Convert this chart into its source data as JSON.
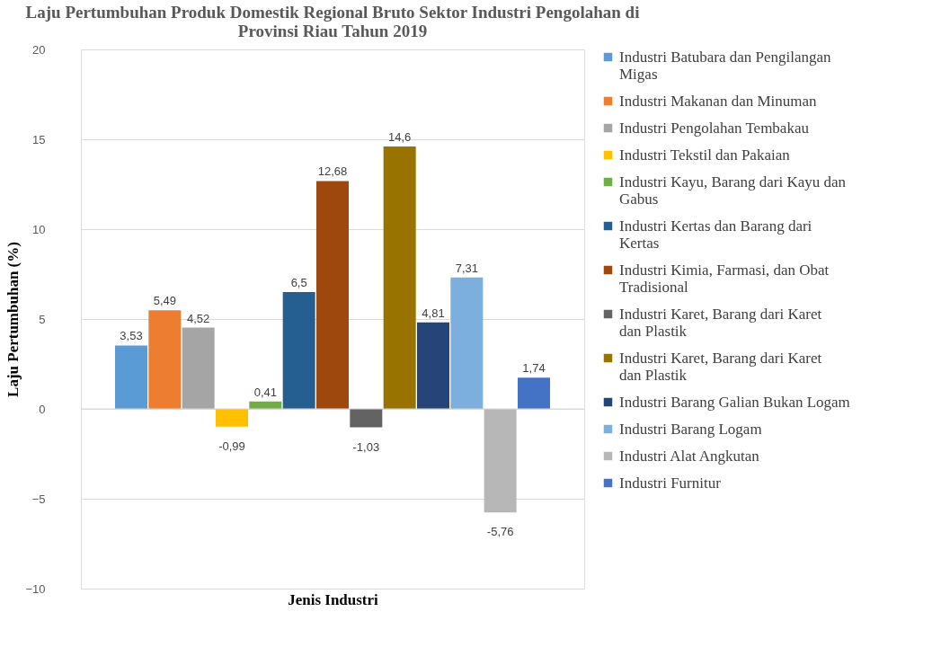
{
  "chart_data": {
    "type": "bar",
    "title": "Laju Pertumbuhan Produk Domestik Regional Bruto Sektor Industri Pengolahan di Provinsi Riau Tahun 2019",
    "xlabel": "Jenis Industri",
    "ylabel": "Laju Pertumbuhan (%)",
    "categories": [
      null
    ],
    "ylim": [
      -10,
      20
    ],
    "yticks": [
      -10,
      -5,
      0,
      5,
      10,
      15,
      20
    ],
    "grid": "y",
    "legend": "right",
    "series": [
      {
        "name": "Industri Batubara dan Pengilangan Migas",
        "color": "#5b9bd5",
        "values": [
          3.53
        ],
        "value_labels": [
          "3,53"
        ]
      },
      {
        "name": "Industri Makanan dan Minuman",
        "color": "#ed7d31",
        "values": [
          5.49
        ],
        "value_labels": [
          "5,49"
        ]
      },
      {
        "name": "Industri Pengolahan Tembakau",
        "color": "#a5a5a5",
        "values": [
          4.52
        ],
        "value_labels": [
          "4,52"
        ]
      },
      {
        "name": "Industri Tekstil dan Pakaian",
        "color": "#ffc000",
        "values": [
          -0.99
        ],
        "value_labels": [
          "-0,99"
        ]
      },
      {
        "name": "Industri Kayu, Barang dari Kayu dan Gabus",
        "color": "#70ad47",
        "values": [
          0.41
        ],
        "value_labels": [
          "0,41"
        ]
      },
      {
        "name": "Industri Kertas dan Barang dari Kertas",
        "color": "#255e91",
        "values": [
          6.5
        ],
        "value_labels": [
          "6,5"
        ]
      },
      {
        "name": "Industri Kimia, Farmasi, dan Obat Tradisional",
        "color": "#9e480e",
        "values": [
          12.68
        ],
        "value_labels": [
          "12,68"
        ]
      },
      {
        "name": "Industri Karet, Barang dari Karet dan Plastik",
        "color": "#636363",
        "values": [
          -1.03
        ],
        "value_labels": [
          "-1,03"
        ]
      },
      {
        "name": "Industri Karet, Barang dari Karet dan Plastik",
        "color": "#997300",
        "values": [
          14.6
        ],
        "value_labels": [
          "14,6"
        ]
      },
      {
        "name": "Industri Barang Galian Bukan Logam",
        "color": "#264478",
        "values": [
          4.81
        ],
        "value_labels": [
          "4,81"
        ]
      },
      {
        "name": "Industri Barang Logam",
        "color": "#7cafdd",
        "values": [
          7.31
        ],
        "value_labels": [
          "7,31"
        ]
      },
      {
        "name": "Industri Alat Angkutan",
        "color": "#b7b7b7",
        "values": [
          -5.76
        ],
        "value_labels": [
          "-5,76"
        ]
      },
      {
        "name": "Industri Furnitur",
        "color": "#4472c4",
        "values": [
          1.74
        ],
        "value_labels": [
          "1,74"
        ]
      }
    ]
  }
}
